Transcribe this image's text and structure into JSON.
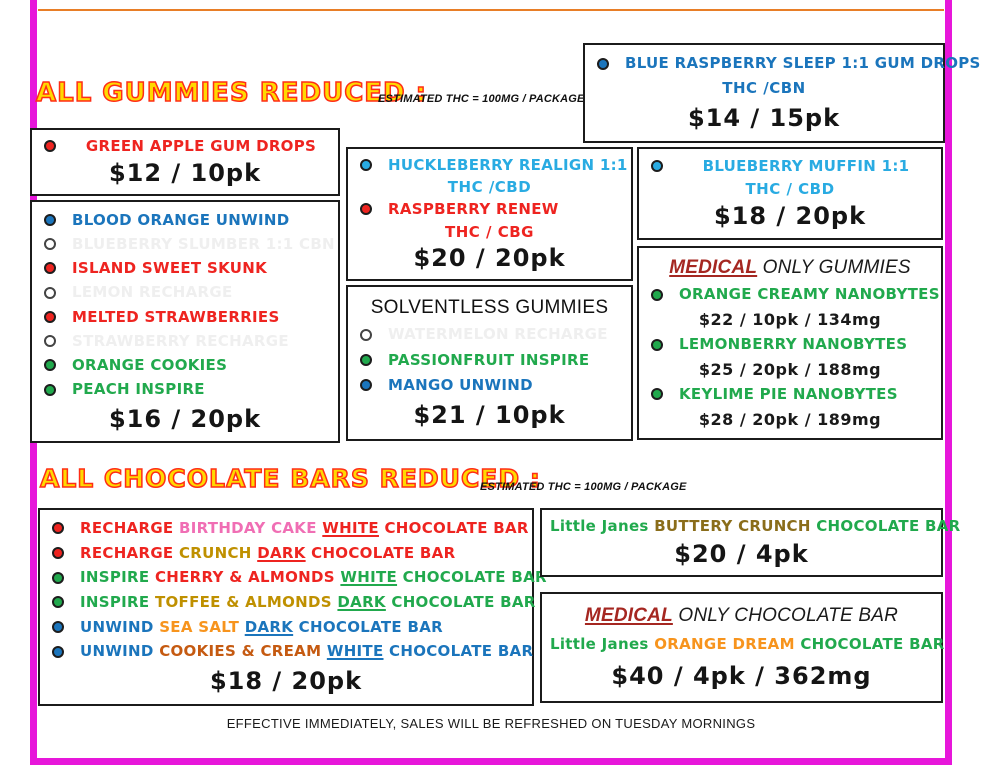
{
  "colors": {
    "red": "#EE2420",
    "blue": "#1B75BC",
    "cyan": "#29ABE2",
    "green": "#21A94D",
    "gray": "#EFEFEF",
    "pink": "#F06EB4",
    "gold": "#BF9000",
    "brown": "#8A6D1A",
    "orange": "#F7941D",
    "darkorange": "#C55A11",
    "darkred": "#A52721",
    "black": "#1A1A1A",
    "magenta": "#E716DA",
    "topline": "#E87E27"
  },
  "headings": {
    "gummies": {
      "title": "ALL GUMMIES REDUCED :",
      "note": "ESTIMATED THC = 100MG / PACKAGE"
    },
    "chocolate": {
      "title": "ALL CHOCOLATE BARS REDUCED :",
      "note": "ESTIMATED THC = 100MG / PACKAGE"
    }
  },
  "footer": "EFFECTIVE IMMEDIATELY, SALES WILL BE REFRESHED ON TUESDAY MORNINGS",
  "boxes": {
    "blue_raspberry": {
      "rows": [
        {
          "t": "item",
          "bullet": "blue",
          "center": true,
          "seg": [
            [
              "BLUE RASPBERRY SLEEP 1:1 GUM DROPS",
              "blue"
            ]
          ]
        },
        {
          "t": "sub",
          "text": "THC /CBN",
          "color": "blue"
        },
        {
          "t": "price",
          "text": "$14 / 15pk"
        }
      ]
    },
    "green_apple": {
      "rows": [
        {
          "t": "item",
          "bullet": "red",
          "center": true,
          "seg": [
            [
              "GREEN APPLE GUM DROPS",
              "red"
            ]
          ]
        },
        {
          "t": "price",
          "text": "$12 / 10pk"
        }
      ]
    },
    "gummies_list": {
      "rows": [
        {
          "t": "item",
          "bullet": "blue",
          "seg": [
            [
              "BLOOD ORANGE UNWIND",
              "blue"
            ]
          ]
        },
        {
          "t": "item",
          "bullet": "hollow",
          "seg": [
            [
              "BLUEBERRY SLUMBER 1:1 CBN",
              "gray"
            ]
          ]
        },
        {
          "t": "item",
          "bullet": "red",
          "seg": [
            [
              "ISLAND SWEET SKUNK",
              "red"
            ]
          ]
        },
        {
          "t": "item",
          "bullet": "hollow",
          "seg": [
            [
              "LEMON RECHARGE",
              "gray"
            ]
          ]
        },
        {
          "t": "item",
          "bullet": "red",
          "seg": [
            [
              "MELTED STRAWBERRIES",
              "red"
            ]
          ]
        },
        {
          "t": "item",
          "bullet": "hollow",
          "seg": [
            [
              "STRAWBERRY RECHARGE",
              "gray"
            ]
          ]
        },
        {
          "t": "item",
          "bullet": "green",
          "seg": [
            [
              "ORANGE COOKIES",
              "green"
            ]
          ]
        },
        {
          "t": "item",
          "bullet": "green",
          "seg": [
            [
              "PEACH INSPIRE",
              "green"
            ]
          ]
        },
        {
          "t": "price",
          "text": "$16 / 20pk"
        }
      ]
    },
    "huckleberry": {
      "rows": [
        {
          "t": "item",
          "bullet": "cyan",
          "seg": [
            [
              "HUCKLEBERRY REALIGN 1:1",
              "cyan"
            ]
          ]
        },
        {
          "t": "sub",
          "text": "THC /CBD",
          "color": "cyan"
        },
        {
          "t": "item",
          "bullet": "red",
          "seg": [
            [
              "RASPBERRY RENEW",
              "red"
            ]
          ]
        },
        {
          "t": "sub",
          "text": "THC / CBG",
          "color": "red"
        },
        {
          "t": "price",
          "text": "$20 / 20pk"
        }
      ]
    },
    "solventless": {
      "rows": [
        {
          "t": "plain-title",
          "text": "SOLVENTLESS GUMMIES"
        },
        {
          "t": "item",
          "bullet": "hollow",
          "seg": [
            [
              "WATERMELON RECHARGE",
              "gray"
            ]
          ]
        },
        {
          "t": "item",
          "bullet": "green",
          "seg": [
            [
              "PASSIONFRUIT INSPIRE",
              "green"
            ]
          ]
        },
        {
          "t": "item",
          "bullet": "blue",
          "seg": [
            [
              "MANGO UNWIND",
              "blue"
            ]
          ]
        },
        {
          "t": "price",
          "text": "$21 / 10pk"
        }
      ]
    },
    "blueberry_muffin": {
      "rows": [
        {
          "t": "item",
          "bullet": "cyan",
          "center": true,
          "seg": [
            [
              "BLUEBERRY MUFFIN 1:1",
              "cyan"
            ]
          ]
        },
        {
          "t": "sub",
          "text": "THC / CBD",
          "color": "cyan"
        },
        {
          "t": "price",
          "text": "$18 / 20pk"
        }
      ]
    },
    "medical_gummies": {
      "rows": [
        {
          "t": "title",
          "seg": [
            [
              "MEDICAL",
              "darkred",
              true
            ],
            [
              " ONLY GUMMIES",
              "black"
            ]
          ]
        },
        {
          "t": "item",
          "bullet": "green",
          "seg": [
            [
              "ORANGE CREAMY NANOBYTES",
              "green"
            ]
          ]
        },
        {
          "t": "subprice",
          "text": "$22 / 10pk / 134mg"
        },
        {
          "t": "item",
          "bullet": "green",
          "seg": [
            [
              "LEMONBERRY NANOBYTES",
              "green"
            ]
          ]
        },
        {
          "t": "subprice",
          "text": "$25 / 20pk / 188mg"
        },
        {
          "t": "item",
          "bullet": "green",
          "seg": [
            [
              "KEYLIME PIE NANOBYTES",
              "green"
            ]
          ]
        },
        {
          "t": "subprice",
          "text": "$28 / 20pk / 189mg"
        }
      ]
    },
    "choc_list": {
      "rows": [
        {
          "t": "item",
          "bullet": "red",
          "seg": [
            [
              "RECHARGE ",
              "red"
            ],
            [
              "BIRTHDAY CAKE ",
              "pink"
            ],
            [
              "WHITE",
              "red",
              true
            ],
            [
              " CHOCOLATE BAR",
              "red"
            ]
          ]
        },
        {
          "t": "item",
          "bullet": "red",
          "seg": [
            [
              "RECHARGE ",
              "red"
            ],
            [
              "CRUNCH ",
              "gold"
            ],
            [
              "DARK",
              "red",
              true
            ],
            [
              " CHOCOLATE BAR",
              "red"
            ]
          ]
        },
        {
          "t": "item",
          "bullet": "green",
          "seg": [
            [
              "INSPIRE ",
              "green"
            ],
            [
              "CHERRY & ALMONDS ",
              "red"
            ],
            [
              "WHITE",
              "green",
              true
            ],
            [
              " CHOCOLATE BAR",
              "green"
            ]
          ]
        },
        {
          "t": "item",
          "bullet": "green",
          "seg": [
            [
              "INSPIRE ",
              "green"
            ],
            [
              "TOFFEE & ALMONDS ",
              "gold"
            ],
            [
              "DARK",
              "green",
              true
            ],
            [
              " CHOCOLATE BAR",
              "green"
            ]
          ]
        },
        {
          "t": "item",
          "bullet": "blue",
          "seg": [
            [
              "UNWIND ",
              "blue"
            ],
            [
              "SEA SALT ",
              "orange"
            ],
            [
              "DARK",
              "blue",
              true
            ],
            [
              " CHOCOLATE BAR",
              "blue"
            ]
          ]
        },
        {
          "t": "item",
          "bullet": "blue",
          "seg": [
            [
              "UNWIND ",
              "blue"
            ],
            [
              "COOKIES & CREAM ",
              "darkorange"
            ],
            [
              "WHITE",
              "blue",
              true
            ],
            [
              " CHOCOLATE BAR",
              "blue"
            ]
          ]
        },
        {
          "t": "price",
          "text": "$18 / 20pk"
        }
      ]
    },
    "little_janes": {
      "rows": [
        {
          "t": "item",
          "center": true,
          "seg": [
            [
              "Little Janes ",
              "green"
            ],
            [
              "BUTTERY CRUNCH ",
              "brown"
            ],
            [
              "CHOCOLATE BAR",
              "green"
            ]
          ]
        },
        {
          "t": "price",
          "text": "$20 / 4pk"
        }
      ]
    },
    "medical_choc": {
      "rows": [
        {
          "t": "title",
          "seg": [
            [
              "MEDICAL",
              "darkred",
              true
            ],
            [
              " ONLY CHOCOLATE BAR",
              "black"
            ]
          ]
        },
        {
          "t": "item",
          "center": true,
          "seg": [
            [
              "Little Janes ",
              "green"
            ],
            [
              "ORANGE DREAM ",
              "orange"
            ],
            [
              "CHOCOLATE BAR",
              "green"
            ]
          ]
        },
        {
          "t": "price",
          "text": "$40 / 4pk / 362mg"
        }
      ]
    }
  }
}
